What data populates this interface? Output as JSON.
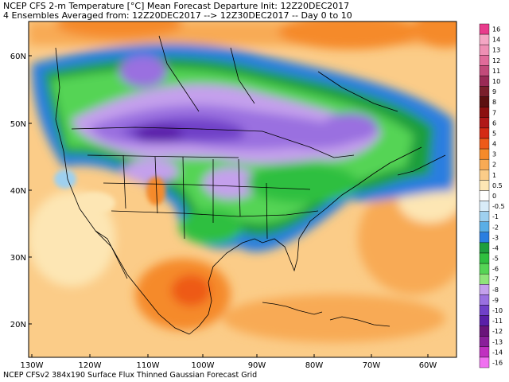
{
  "header": {
    "line1": "NCEP CFS 2-m Temperature [°C] Mean Forecast Departure Init: 12Z20DEC2017",
    "line2": "4 Ensembles Averaged from: 12Z20DEC2017 --> 12Z30DEC2017 -- Day 0 to 10"
  },
  "footer": "NCEP CFSv2 384x190 Surface Flux Thinned Gaussian Forecast Grid",
  "axes": {
    "lat_labels": [
      "60N",
      "50N",
      "40N",
      "30N",
      "20N"
    ],
    "lon_labels": [
      "130W",
      "120W",
      "110W",
      "100W",
      "90W",
      "80W",
      "70W",
      "60W"
    ]
  },
  "colorbar": {
    "labels": [
      "16",
      "14",
      "13",
      "12",
      "11",
      "10",
      "9",
      "8",
      "7",
      "6",
      "5",
      "4",
      "3",
      "2",
      "1",
      "0.5",
      "0",
      "-0.5",
      "-1",
      "-2",
      "-3",
      "-4",
      "-5",
      "-6",
      "-7",
      "-8",
      "-9",
      "-10",
      "-11",
      "-12",
      "-13",
      "-14",
      "-16"
    ],
    "colors": [
      "#e83c8c",
      "#f4a6c4",
      "#ee8fb4",
      "#e06b9a",
      "#c24a7a",
      "#9a2a56",
      "#7a1f2c",
      "#5c1010",
      "#8c1010",
      "#b01818",
      "#d42a14",
      "#ee5a18",
      "#f58a2a",
      "#f8aa55",
      "#fbcc88",
      "#fde6b4",
      "#ffffff",
      "#d8ecf8",
      "#9ed0ef",
      "#5aaee6",
      "#2a7ee0",
      "#1e9e3c",
      "#2fbf3f",
      "#55d455",
      "#8fe47a",
      "#c4a0ec",
      "#9a70e0",
      "#7040c8",
      "#5a1fa8",
      "#6a147a",
      "#8a1f9a",
      "#c030c0",
      "#f070f0"
    ]
  }
}
